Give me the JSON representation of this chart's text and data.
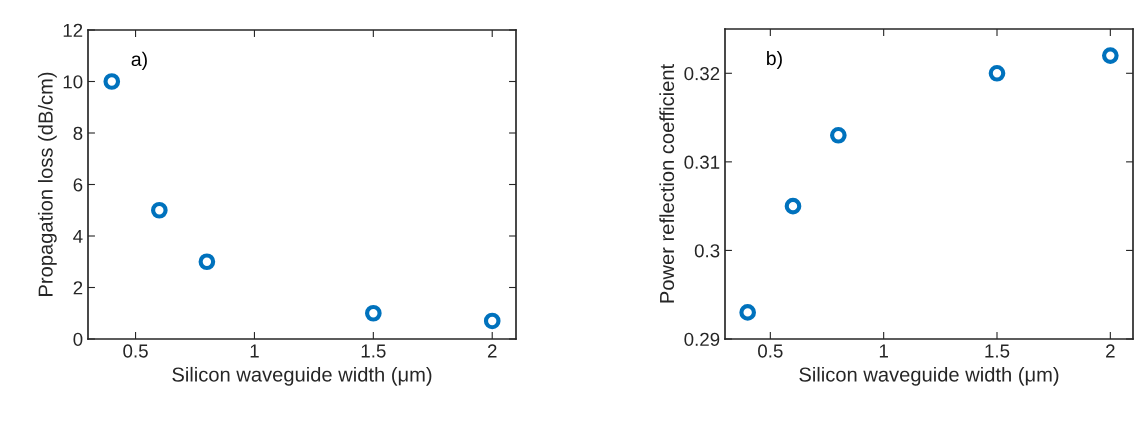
{
  "chart_data": [
    {
      "type": "scatter",
      "xlabel": "Silicon waveguide width (μm)",
      "ylabel": "Propagation loss (dB/cm)",
      "annotations": [
        "a)"
      ],
      "x": [
        0.4,
        0.6,
        0.8,
        1.5,
        2.0
      ],
      "values": [
        10,
        5,
        3,
        1,
        0.7
      ],
      "color": "#0072bd",
      "marker": "circle",
      "xlim": [
        0.3,
        2.1
      ],
      "xticks": [
        0.5,
        1,
        1.5,
        2
      ],
      "ylim": [
        0,
        12
      ],
      "yticks": [
        0,
        2,
        4,
        6,
        8,
        10,
        12
      ],
      "grid": false,
      "legend": false
    },
    {
      "type": "scatter",
      "xlabel": "Silicon waveguide width (μm)",
      "ylabel": "Power reflection coefficient",
      "annotations": [
        "b)"
      ],
      "x": [
        0.4,
        0.6,
        0.8,
        1.5,
        2.0
      ],
      "values": [
        0.293,
        0.305,
        0.313,
        0.32,
        0.322
      ],
      "color": "#0072bd",
      "marker": "circle",
      "xlim": [
        0.3,
        2.1
      ],
      "xticks": [
        0.5,
        1,
        1.5,
        2
      ],
      "ylim": [
        0.29,
        0.325
      ],
      "yticks": [
        0.29,
        0.3,
        0.31,
        0.32
      ],
      "grid": false,
      "legend": false
    }
  ]
}
